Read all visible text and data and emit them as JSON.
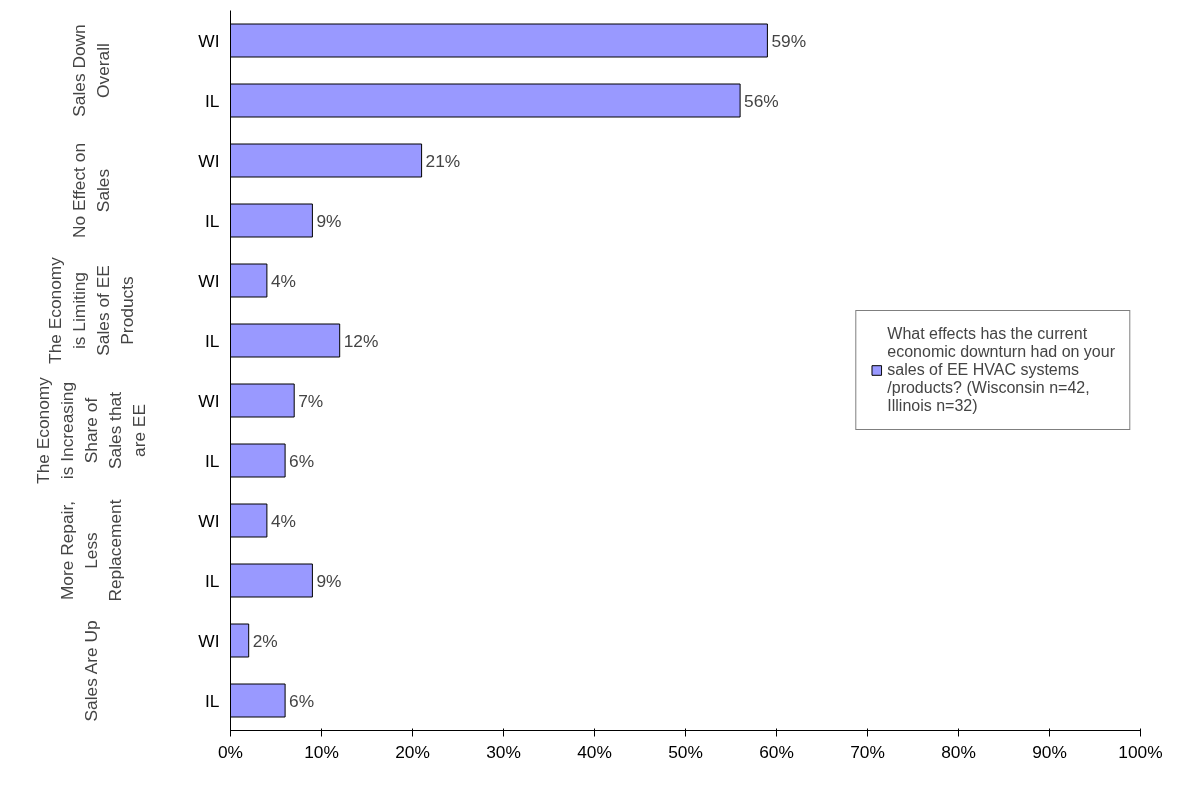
{
  "chart_data": {
    "type": "bar",
    "orientation": "horizontal",
    "categories": [
      "WI",
      "IL",
      "WI",
      "IL",
      "WI",
      "IL",
      "WI",
      "IL",
      "WI",
      "IL",
      "WI",
      "IL"
    ],
    "series": [
      {
        "name": "What effects has the current economic downturn had on your sales of EE HVAC systems /products? (Wisconsin n=42, Illinois n=32)",
        "color": "#9999ff",
        "values": [
          59,
          56,
          21,
          9,
          4,
          12,
          7,
          6,
          4,
          9,
          2,
          6
        ],
        "value_labels": [
          "59%",
          "56%",
          "21%",
          "9%",
          "4%",
          "12%",
          "7%",
          "6%",
          "4%",
          "9%",
          "2%",
          "6%"
        ]
      }
    ],
    "annotations": [
      "Sales Down Overall",
      "No Effect on Sales",
      "The Economy is Limiting Sales of EE Products",
      "The Economy is Increasing Share of Sales that are EE",
      "More Repair, Less Replacement",
      "Sales Are Up"
    ],
    "xlim": [
      0,
      100
    ],
    "xticks": [
      {
        "value": 0,
        "label": "0%"
      },
      {
        "value": 10,
        "label": "10%"
      },
      {
        "value": 20,
        "label": "20%"
      },
      {
        "value": 30,
        "label": "30%"
      },
      {
        "value": 40,
        "label": "40%"
      },
      {
        "value": 50,
        "label": "50%"
      },
      {
        "value": 60,
        "label": "60%"
      },
      {
        "value": 70,
        "label": "70%"
      },
      {
        "value": 80,
        "label": "80%"
      },
      {
        "value": 90,
        "label": "90%"
      },
      {
        "value": 100,
        "label": "100%"
      }
    ],
    "legend": "right"
  }
}
